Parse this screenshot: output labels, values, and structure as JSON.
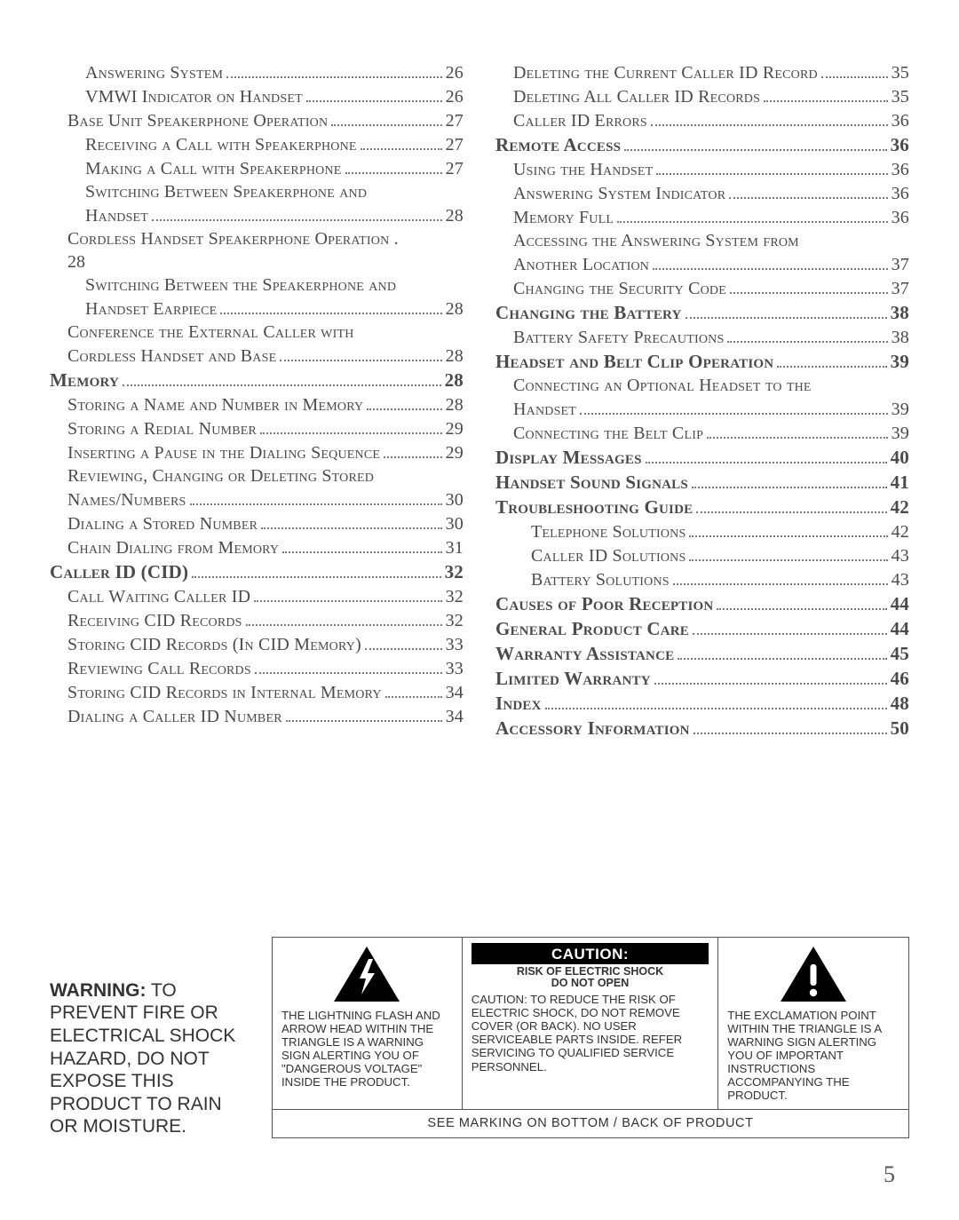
{
  "page_number": "5",
  "toc": {
    "left": [
      {
        "indent": 2,
        "label": "Answering System",
        "page": "26",
        "bold": false
      },
      {
        "indent": 2,
        "label": "VMWI Indicator on Handset",
        "page": "26",
        "bold": false
      },
      {
        "indent": 1,
        "label": "Base Unit Speakerphone Operation",
        "page": "27",
        "bold": false
      },
      {
        "indent": 2,
        "label": "Receiving a Call with Speakerphone",
        "page": "27",
        "bold": false
      },
      {
        "indent": 2,
        "label": "Making a Call with Speakerphone",
        "page": "27",
        "bold": false
      },
      {
        "indent": 2,
        "label": "Switching Between Speakerphone and",
        "page": "",
        "bold": false,
        "nopage": true
      },
      {
        "indent": 2,
        "label": "Handset",
        "page": "28",
        "bold": false
      },
      {
        "indent": 1,
        "label": "Cordless Handset Speakerphone Operation .",
        "page": "",
        "bold": false,
        "nopage": true
      },
      {
        "indent": 1,
        "label": "28",
        "page": "",
        "bold": false,
        "nopage": true,
        "solo": true
      },
      {
        "indent": 2,
        "label": "Switching Between the Speakerphone and",
        "page": "",
        "bold": false,
        "nopage": true
      },
      {
        "indent": 2,
        "label": "Handset Earpiece",
        "page": "28",
        "bold": false
      },
      {
        "indent": 1,
        "label": "Conference the External Caller with",
        "page": "",
        "bold": false,
        "nopage": true
      },
      {
        "indent": 1,
        "label": "Cordless Handset and Base",
        "page": "28",
        "bold": false
      },
      {
        "indent": 0,
        "label": "Memory",
        "page": "28",
        "bold": true
      },
      {
        "indent": 1,
        "label": "Storing a Name and Number in Memory",
        "page": "28",
        "bold": false
      },
      {
        "indent": 1,
        "label": "Storing a Redial Number",
        "page": "29",
        "bold": false
      },
      {
        "indent": 1,
        "label": "Inserting a Pause in the Dialing Sequence",
        "page": "29",
        "bold": false
      },
      {
        "indent": 1,
        "label": "Reviewing, Changing or Deleting Stored",
        "page": "",
        "bold": false,
        "nopage": true
      },
      {
        "indent": 1,
        "label": "Names/Numbers",
        "page": "30",
        "bold": false
      },
      {
        "indent": 1,
        "label": "Dialing a Stored Number",
        "page": "30",
        "bold": false
      },
      {
        "indent": 1,
        "label": "Chain Dialing from Memory",
        "page": "31",
        "bold": false
      },
      {
        "indent": 0,
        "label": "Caller ID (CID)",
        "page": "32",
        "bold": true
      },
      {
        "indent": 1,
        "label": "Call Waiting Caller ID",
        "page": "32",
        "bold": false
      },
      {
        "indent": 1,
        "label": "Receiving CID Records",
        "page": "32",
        "bold": false
      },
      {
        "indent": 1,
        "label": "Storing CID Records (In CID Memory)",
        "page": "33",
        "bold": false
      },
      {
        "indent": 1,
        "label": "Reviewing Call Records",
        "page": "33",
        "bold": false
      },
      {
        "indent": 1,
        "label": "Storing CID Records in Internal Memory",
        "page": "34",
        "bold": false
      },
      {
        "indent": 1,
        "label": "Dialing a Caller ID Number",
        "page": "34",
        "bold": false
      }
    ],
    "right": [
      {
        "indent": 1,
        "label": "Deleting the Current Caller ID Record",
        "page": "35",
        "bold": false
      },
      {
        "indent": 1,
        "label": "Deleting All Caller ID Records",
        "page": "35",
        "bold": false
      },
      {
        "indent": 1,
        "label": "Caller ID Errors",
        "page": "36",
        "bold": false
      },
      {
        "indent": 0,
        "label": "Remote Access",
        "page": "36",
        "bold": true
      },
      {
        "indent": 1,
        "label": "Using the Handset",
        "page": "36",
        "bold": false
      },
      {
        "indent": 1,
        "label": "Answering System Indicator",
        "page": "36",
        "bold": false
      },
      {
        "indent": 1,
        "label": "Memory Full",
        "page": "36",
        "bold": false
      },
      {
        "indent": 1,
        "label": "Accessing the Answering System from",
        "page": "",
        "bold": false,
        "nopage": true
      },
      {
        "indent": 1,
        "label": "Another Location",
        "page": "37",
        "bold": false
      },
      {
        "indent": 1,
        "label": "Changing the Security Code",
        "page": "37",
        "bold": false
      },
      {
        "indent": 0,
        "label": "Changing the Battery",
        "page": "38",
        "bold": true
      },
      {
        "indent": 1,
        "label": "Battery Safety Precautions",
        "page": "38",
        "bold": false
      },
      {
        "indent": 0,
        "label": "Headset and Belt Clip Operation",
        "page": "39",
        "bold": true
      },
      {
        "indent": 1,
        "label": "Connecting an Optional Headset to the",
        "page": "",
        "bold": false,
        "nopage": true
      },
      {
        "indent": 1,
        "label": "Handset",
        "page": "39",
        "bold": false
      },
      {
        "indent": 1,
        "label": "Connecting the Belt Clip",
        "page": "39",
        "bold": false
      },
      {
        "indent": 0,
        "label": "Display Messages",
        "page": "40",
        "bold": true
      },
      {
        "indent": 0,
        "label": "Handset Sound Signals",
        "page": "41",
        "bold": true
      },
      {
        "indent": 0,
        "label": "Troubleshooting Guide",
        "page": "42",
        "bold": true
      },
      {
        "indent": 2,
        "label": "Telephone Solutions",
        "page": "42",
        "bold": false
      },
      {
        "indent": 2,
        "label": "Caller ID Solutions",
        "page": "43",
        "bold": false
      },
      {
        "indent": 2,
        "label": "Battery Solutions",
        "page": "43",
        "bold": false
      },
      {
        "indent": 0,
        "label": "Causes of Poor Reception",
        "page": "44",
        "bold": true
      },
      {
        "indent": 0,
        "label": "General Product Care",
        "page": "44",
        "bold": true
      },
      {
        "indent": 0,
        "label": "Warranty Assistance",
        "page": "45",
        "bold": true
      },
      {
        "indent": 0,
        "label": "Limited Warranty",
        "page": "46",
        "bold": true
      },
      {
        "indent": 0,
        "label": "Index",
        "page": "48",
        "bold": true
      },
      {
        "indent": 0,
        "label": "Accessory Information",
        "page": "50",
        "bold": true
      }
    ]
  },
  "warning": {
    "left_title": "WARNING:",
    "left_body": "TO PREVENT FIRE OR ELECTRICAL SHOCK HAZARD, DO NOT EXPOSE THIS PRODUCT TO RAIN OR MOISTURE.",
    "col1": "THE LIGHTNING FLASH AND ARROW HEAD WITHIN THE TRIANGLE IS A WARNING SIGN ALERTING YOU OF \"DANGEROUS VOLTAGE\" INSIDE THE PRODUCT.",
    "col2_header": "CAUTION:",
    "col2_sub": "RISK OF ELECTRIC SHOCK\nDO NOT OPEN",
    "col2_body": "CAUTION: TO REDUCE THE RISK OF ELECTRIC SHOCK, DO NOT REMOVE COVER (OR BACK). NO USER SERVICEABLE PARTS INSIDE. REFER SERVICING TO QUALIFIED SERVICE PERSONNEL.",
    "col3": "THE EXCLAMATION POINT WITHIN THE TRIANGLE IS A WARNING SIGN ALERTING YOU  OF IMPORTANT INSTRUCTIONS ACCOMPANYING THE PRODUCT.",
    "footer": "SEE MARKING ON BOTTOM / BACK OF PRODUCT"
  }
}
